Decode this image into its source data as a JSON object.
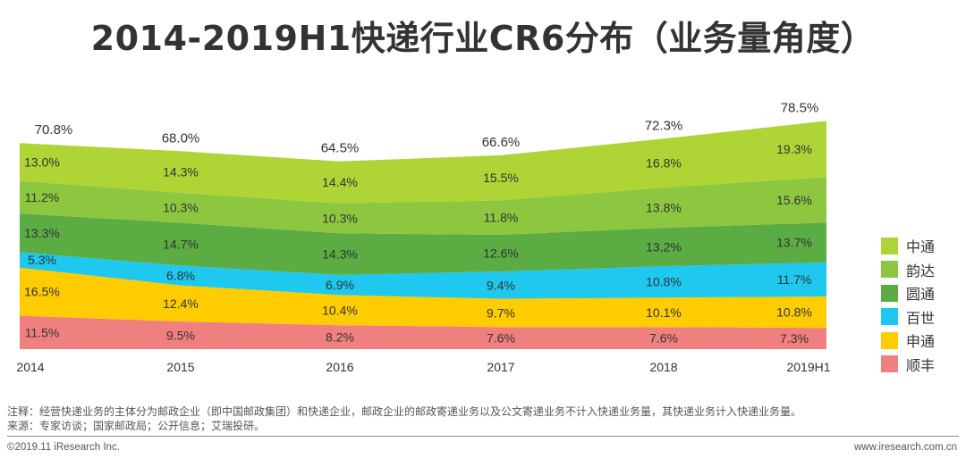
{
  "chart_data": {
    "type": "area",
    "title": "2014-2019H1快递行业CR6分布（业务量角度）",
    "categories": [
      "2014",
      "2015",
      "2016",
      "2017",
      "2018",
      "2019H1"
    ],
    "totals": [
      "70.8%",
      "68.0%",
      "64.5%",
      "66.6%",
      "72.3%",
      "78.5%"
    ],
    "total_values": [
      70.8,
      68.0,
      64.5,
      66.6,
      72.3,
      78.5
    ],
    "series": [
      {
        "name": "顺丰",
        "color": "#f08080",
        "values": [
          11.5,
          9.5,
          8.2,
          7.6,
          7.6,
          7.3
        ],
        "labels": [
          "11.5%",
          "9.5%",
          "8.2%",
          "7.6%",
          "7.6%",
          "7.3%"
        ]
      },
      {
        "name": "申通",
        "color": "#ffcc00",
        "values": [
          16.5,
          12.4,
          10.4,
          9.7,
          10.1,
          10.8
        ],
        "labels": [
          "16.5%",
          "12.4%",
          "10.4%",
          "9.7%",
          "10.1%",
          "10.8%"
        ]
      },
      {
        "name": "百世",
        "color": "#1ec8ee",
        "values": [
          5.3,
          6.8,
          6.9,
          9.4,
          10.8,
          11.7
        ],
        "labels": [
          "5.3%",
          "6.8%",
          "6.9%",
          "9.4%",
          "10.8%",
          "11.7%"
        ]
      },
      {
        "name": "圆通",
        "color": "#5aac43",
        "values": [
          13.3,
          14.7,
          14.3,
          12.6,
          13.2,
          13.7
        ],
        "labels": [
          "13.3%",
          "14.7%",
          "14.3%",
          "12.6%",
          "13.2%",
          "13.7%"
        ]
      },
      {
        "name": "韵达",
        "color": "#8dc63f",
        "values": [
          11.2,
          10.3,
          10.3,
          11.8,
          13.8,
          15.6
        ],
        "labels": [
          "11.2%",
          "10.3%",
          "10.3%",
          "11.8%",
          "13.8%",
          "15.6%"
        ]
      },
      {
        "name": "中通",
        "color": "#aed435",
        "values": [
          13.0,
          14.3,
          14.4,
          15.5,
          16.8,
          19.3
        ],
        "labels": [
          "13.0%",
          "14.3%",
          "14.4%",
          "15.5%",
          "16.8%",
          "19.3%"
        ]
      }
    ],
    "legend": [
      "中通",
      "韵达",
      "圆通",
      "百世",
      "申通",
      "顺丰"
    ],
    "ylim": [
      0,
      80
    ]
  },
  "footnotes": {
    "note": "注释：经营快递业务的主体分为邮政企业（即中国邮政集团）和快递企业，邮政企业的邮政寄递业务以及公文寄递业务不计入快递业务量，其快递业务计入快递业务量。",
    "source": "来源：专家访谈；国家邮政局；公开信息；艾瑞投研。"
  },
  "copyright": "©2019.11 iResearch Inc.",
  "website": "www.iresearch.com.cn"
}
